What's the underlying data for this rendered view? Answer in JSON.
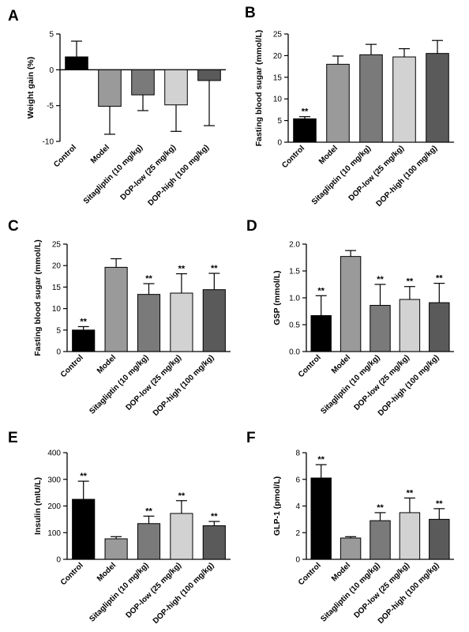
{
  "colors": [
    "#000000",
    "#9a9a9a",
    "#7a7a7a",
    "#d2d2d2",
    "#5a5a5a"
  ],
  "chart_data": [
    {
      "panel": "A",
      "type": "bar",
      "categories": [
        "Control",
        "Model",
        "Sitagliptin (10 mg/kg)",
        "DOP-low (25 mg/kg)",
        "DOP-high (100 mg/kg)"
      ],
      "values": [
        1.8,
        -5.1,
        -3.5,
        -4.9,
        -1.5
      ],
      "errors": [
        2.2,
        3.9,
        2.2,
        3.7,
        6.3
      ],
      "significance": [
        "",
        "",
        "",
        "",
        ""
      ],
      "ylabel": "Weight gain (%)",
      "ylim": [
        -10,
        5
      ],
      "yticks": [
        -10,
        -5,
        0,
        5
      ],
      "ytick_labels": [
        "-10",
        "-5",
        "0",
        "5"
      ]
    },
    {
      "panel": "B",
      "type": "bar",
      "categories": [
        "Control",
        "Model",
        "Sitagliptin (10 mg/kg)",
        "DOP-low (25 mg/kg)",
        "DOP-high (100 mg/kg)"
      ],
      "values": [
        5.4,
        18.0,
        20.2,
        19.7,
        20.5
      ],
      "errors": [
        0.5,
        1.9,
        2.4,
        1.9,
        3.0
      ],
      "significance": [
        "**",
        "",
        "",
        "",
        ""
      ],
      "ylabel": "Fasting blood sugar (mmol/L)",
      "ylim": [
        0,
        25
      ],
      "yticks": [
        0,
        5,
        10,
        15,
        20,
        25
      ],
      "ytick_labels": [
        "0",
        "5",
        "10",
        "15",
        "20",
        "25"
      ]
    },
    {
      "panel": "C",
      "type": "bar",
      "categories": [
        "Control",
        "Model",
        "Sitagliptin (10 mg/kg)",
        "DOP-low (25 mg/kg)",
        "DOP-high (100 mg/kg)"
      ],
      "values": [
        5.0,
        19.6,
        13.3,
        13.6,
        14.4
      ],
      "errors": [
        0.8,
        2.0,
        2.5,
        4.5,
        3.8
      ],
      "significance": [
        "**",
        "",
        "**",
        "**",
        "**"
      ],
      "ylabel": "Fasting blood sugar (mmol/L)",
      "ylim": [
        0,
        25
      ],
      "yticks": [
        0,
        5,
        10,
        15,
        20,
        25
      ],
      "ytick_labels": [
        "0",
        "5",
        "10",
        "15",
        "20",
        "25"
      ]
    },
    {
      "panel": "D",
      "type": "bar",
      "categories": [
        "Control",
        "Model",
        "Sitagliptin (10 mg/kg)",
        "DOP-low (25 mg/kg)",
        "DOP-high (100 mg/kg)"
      ],
      "values": [
        0.67,
        1.77,
        0.86,
        0.97,
        0.91
      ],
      "errors": [
        0.37,
        0.11,
        0.39,
        0.24,
        0.36
      ],
      "significance": [
        "**",
        "",
        "**",
        "**",
        "**"
      ],
      "ylabel": "GSP (mmol/L)",
      "ylim": [
        0,
        2
      ],
      "yticks": [
        0,
        0.5,
        1,
        1.5,
        2
      ],
      "ytick_labels": [
        "0.0",
        "0.5",
        "1.0",
        "1.5",
        "2.0"
      ]
    },
    {
      "panel": "E",
      "type": "bar",
      "categories": [
        "Control",
        "Model",
        "Sitagliptin (10 mg/kg)",
        "DOP-low (25 mg/kg)",
        "DOP-high (100 mg/kg)"
      ],
      "values": [
        225,
        77,
        134,
        172,
        126
      ],
      "errors": [
        68,
        8,
        28,
        48,
        16
      ],
      "significance": [
        "**",
        "",
        "**",
        "**",
        "**"
      ],
      "ylabel": "Insulin (mIU/L)",
      "ylim": [
        0,
        400
      ],
      "yticks": [
        0,
        100,
        200,
        300,
        400
      ],
      "ytick_labels": [
        "0",
        "100",
        "200",
        "300",
        "400"
      ]
    },
    {
      "panel": "F",
      "type": "bar",
      "categories": [
        "Control",
        "Model",
        "Sitagliptin (10 mg/kg)",
        "DOP-low (25 mg/kg)",
        "DOP-high (100 mg/kg)"
      ],
      "values": [
        6.1,
        1.6,
        2.9,
        3.5,
        3.0
      ],
      "errors": [
        1.0,
        0.1,
        0.6,
        1.1,
        0.8
      ],
      "significance": [
        "**",
        "",
        "**",
        "**",
        "**"
      ],
      "ylabel": "GLP-1 (pmol/L)",
      "ylim": [
        0,
        8
      ],
      "yticks": [
        0,
        2,
        4,
        6,
        8
      ],
      "ytick_labels": [
        "0",
        "2",
        "4",
        "6",
        "8"
      ]
    }
  ]
}
